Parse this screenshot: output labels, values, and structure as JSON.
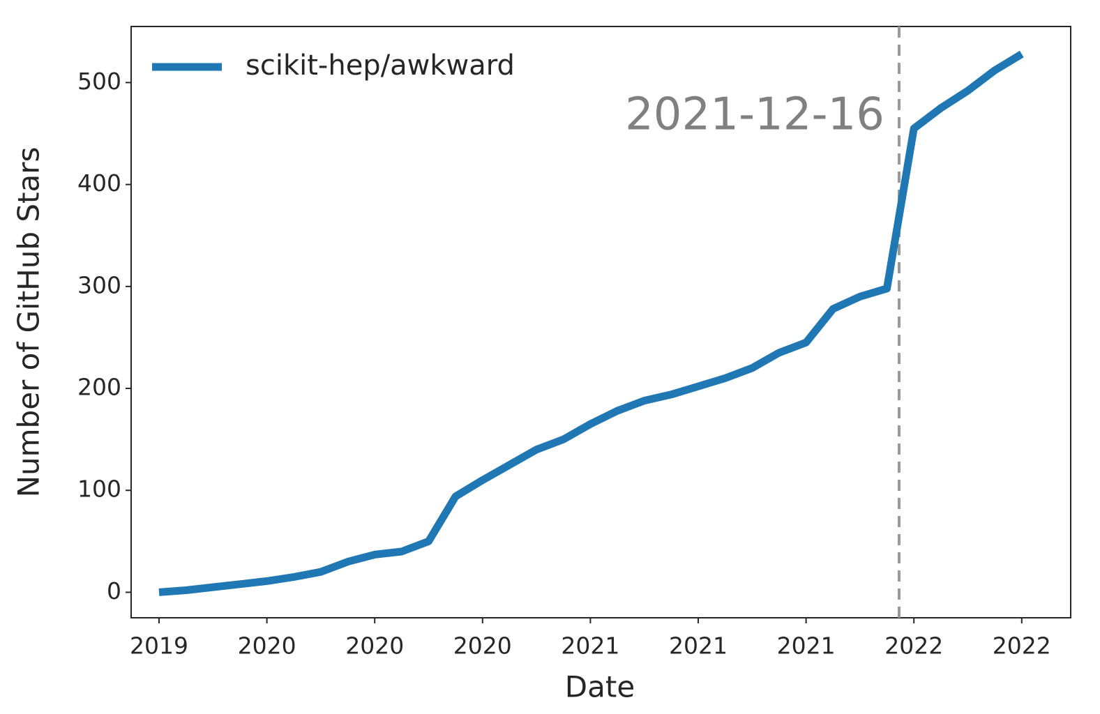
{
  "chart_data": {
    "type": "line",
    "x_label": "Date",
    "y_label": "Number of GitHub Stars",
    "annotation": "2021-12-16",
    "categories": [
      "2019",
      null,
      null,
      null,
      "2020",
      null,
      null,
      null,
      "2020",
      null,
      null,
      null,
      "2020",
      null,
      null,
      null,
      "2021",
      null,
      null,
      null,
      "2021",
      null,
      null,
      null,
      "2021",
      null,
      null,
      null,
      "2022",
      null,
      null,
      null,
      "2022"
    ],
    "series": [
      {
        "name": "scikit-hep/awkward",
        "color": "#1f77b4",
        "values": [
          0,
          2,
          5,
          8,
          11,
          15,
          20,
          30,
          37,
          40,
          50,
          94,
          110,
          125,
          140,
          150,
          165,
          178,
          188,
          194,
          202,
          210,
          220,
          235,
          245,
          278,
          290,
          298,
          455,
          475,
          492,
          512,
          528
        ]
      }
    ],
    "ylim": [
      -25,
      555
    ],
    "yticks": [
      0,
      100,
      200,
      300,
      400,
      500
    ],
    "legend": "upper left",
    "grid": false
  }
}
